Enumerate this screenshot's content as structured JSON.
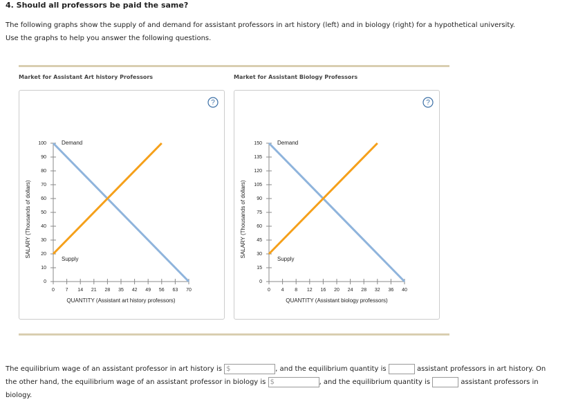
{
  "question": "4. Should all professors be paid the same?",
  "intro": [
    "The following graphs show the supply of and demand for assistant professors in art history (left) and in biology (right) for a hypothetical university.",
    "Use the graphs to help you answer the following questions."
  ],
  "help_icon": "?",
  "answer": {
    "currency": "$",
    "parts": [
      "The equilibrium wage of an assistant professor in art history is",
      ", and the equilibrium quantity is",
      "assistant professors in art history. On the other hand, the equilibrium wage of an assistant professor in biology is",
      ", and the equilibrium quantity is",
      "assistant professors in biology."
    ]
  },
  "chart_data": [
    {
      "type": "line",
      "title": "Market for Assistant Art history Professors",
      "x_label": "QUANTITY (Assistant art history professors)",
      "y_label": "SALARY (Thousands of dollars)",
      "xlim": [
        0,
        70
      ],
      "ylim": [
        0,
        100
      ],
      "xticks": [
        0,
        7,
        14,
        21,
        28,
        35,
        42,
        49,
        56,
        63,
        70
      ],
      "yticks": [
        0,
        10,
        20,
        30,
        40,
        50,
        60,
        70,
        80,
        90,
        100
      ],
      "series": [
        {
          "name": "Demand",
          "color": "#8fb4dc",
          "x": [
            0,
            70
          ],
          "values": [
            100,
            0
          ]
        },
        {
          "name": "Supply",
          "color": "#f5a01a",
          "x": [
            0,
            56
          ],
          "values": [
            20,
            100
          ]
        }
      ]
    },
    {
      "type": "line",
      "title": "Market for Assistant Biology Professors",
      "x_label": "QUANTITY (Assistant biology professors)",
      "y_label": "SALARY (Thousands of dollars)",
      "xlim": [
        0,
        40
      ],
      "ylim": [
        0,
        150
      ],
      "xticks": [
        0,
        4,
        8,
        12,
        16,
        20,
        24,
        28,
        32,
        36,
        40
      ],
      "yticks": [
        0,
        15,
        30,
        45,
        60,
        75,
        90,
        105,
        120,
        135,
        150
      ],
      "series": [
        {
          "name": "Demand",
          "color": "#8fb4dc",
          "x": [
            0,
            40
          ],
          "values": [
            150,
            0
          ]
        },
        {
          "name": "Supply",
          "color": "#f5a01a",
          "x": [
            0,
            32
          ],
          "values": [
            30,
            150
          ]
        }
      ]
    }
  ]
}
